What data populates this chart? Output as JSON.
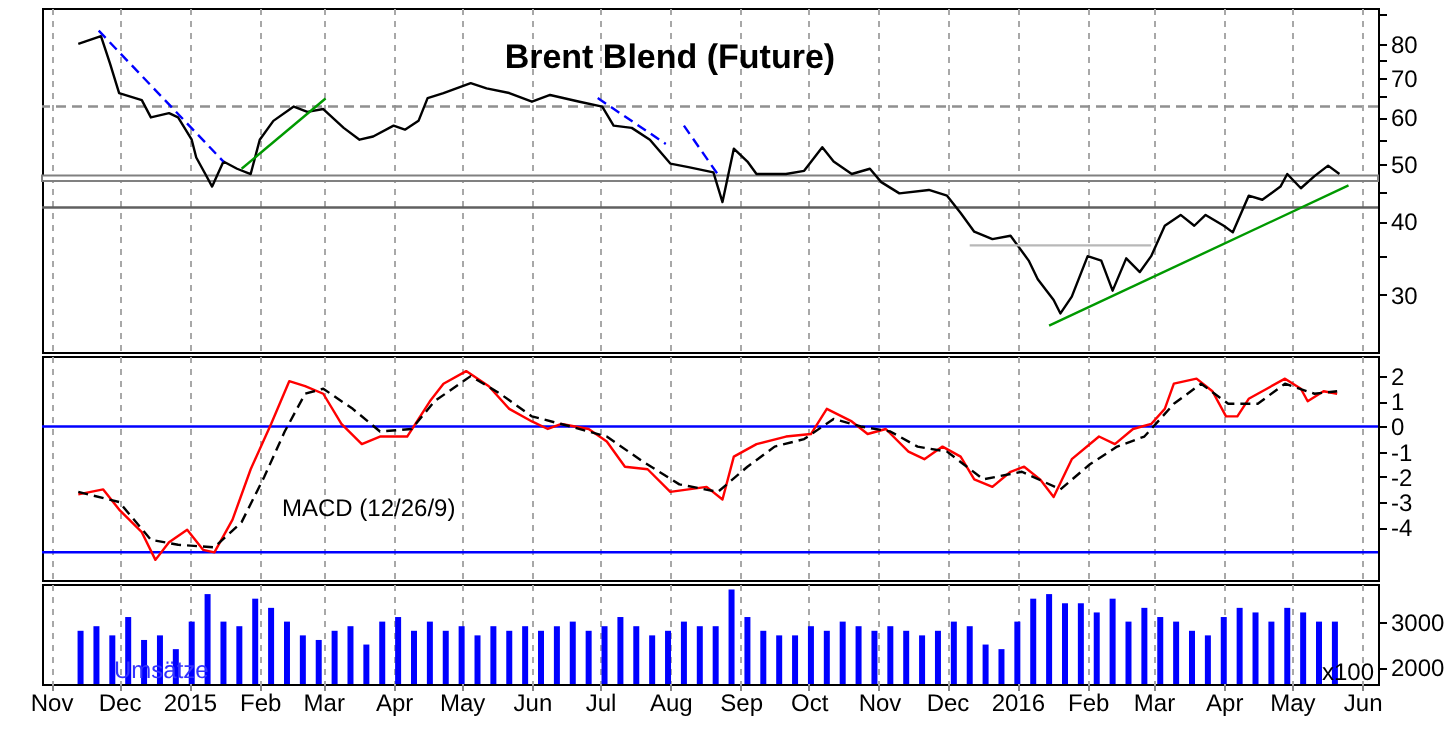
{
  "chart_data": [
    {
      "type": "line",
      "title": "Brent Blend (Future)",
      "log": "y",
      "grid": "x",
      "tick_labels": "y",
      "xlim": [
        "2014-10-28",
        "2016-06-08"
      ],
      "xticks": [
        {
          "value": "2014-11-01",
          "label": null
        },
        {
          "value": "2014-12-01",
          "label": null
        },
        {
          "value": "2015-01-01",
          "label": null
        },
        {
          "value": "2015-02-01",
          "label": null
        },
        {
          "value": "2015-03-01",
          "label": null
        },
        {
          "value": "2015-04-01",
          "label": null
        },
        {
          "value": "2015-05-01",
          "label": null
        },
        {
          "value": "2015-06-01",
          "label": null
        },
        {
          "value": "2015-07-01",
          "label": null
        },
        {
          "value": "2015-08-01",
          "label": null
        },
        {
          "value": "2015-09-01",
          "label": null
        },
        {
          "value": "2015-10-01",
          "label": null
        },
        {
          "value": "2015-11-01",
          "label": null
        },
        {
          "value": "2015-12-01",
          "label": null
        },
        {
          "value": "2016-01-01",
          "label": null
        },
        {
          "value": "2016-02-01",
          "label": null
        },
        {
          "value": "2016-03-01",
          "label": null
        },
        {
          "value": "2016-04-01",
          "label": null
        },
        {
          "value": "2016-05-01",
          "label": null
        },
        {
          "value": "2016-06-01",
          "label": null
        }
      ],
      "ylim": [
        24,
        92
      ],
      "yticks": [
        30,
        {
          "value": 35,
          "label": null
        },
        40,
        {
          "value": 45,
          "label": null
        },
        50,
        {
          "value": 55,
          "label": null
        },
        60,
        {
          "value": 65,
          "label": null
        },
        70,
        {
          "value": 75,
          "label": null
        },
        80,
        {
          "value": 90,
          "label": null
        }
      ],
      "bands": [
        {
          "axis": "y",
          "from": 46.8,
          "to": 47.8,
          "color": "#808080"
        }
      ],
      "ref_lines": [
        {
          "axis": "y",
          "value": 62.6,
          "color": "#909090",
          "line_style": "dashed"
        },
        {
          "axis": "y",
          "value": 42.2,
          "color": "#606060",
          "line_style": "solid"
        }
      ],
      "series": [
        {
          "color": "#000000",
          "line_style": "solid",
          "x": [
            "2014-11-13",
            "2014-11-23",
            "2014-11-27",
            "2014-12-01",
            "2014-12-11",
            "2014-12-15",
            "2014-12-23",
            "2014-12-27",
            "2015-01-02",
            "2015-01-04",
            "2015-01-08",
            "2015-01-11",
            "2015-01-16",
            "2015-01-22",
            "2015-01-28",
            "2015-02-01",
            "2015-02-07",
            "2015-02-16",
            "2015-02-22",
            "2015-03-01",
            "2015-03-10",
            "2015-03-17",
            "2015-03-23",
            "2015-04-01",
            "2015-04-06",
            "2015-04-12",
            "2015-04-16",
            "2015-04-23",
            "2015-05-05",
            "2015-05-12",
            "2015-05-22",
            "2015-06-01",
            "2015-06-09",
            "2015-06-22",
            "2015-07-02",
            "2015-07-07",
            "2015-07-15",
            "2015-07-23",
            "2015-08-01",
            "2015-08-09",
            "2015-08-20",
            "2015-08-24",
            "2015-08-29",
            "2015-09-04",
            "2015-09-08",
            "2015-09-21",
            "2015-09-29",
            "2015-10-07",
            "2015-10-12",
            "2015-10-20",
            "2015-10-28",
            "2015-11-02",
            "2015-11-10",
            "2015-11-23",
            "2015-12-01",
            "2015-12-07",
            "2015-12-13",
            "2015-12-21",
            "2015-12-29",
            "2016-01-06",
            "2016-01-10",
            "2016-01-17",
            "2016-01-20",
            "2016-01-25",
            "2016-02-01",
            "2016-02-07",
            "2016-02-12",
            "2016-02-18",
            "2016-02-24",
            "2016-02-29",
            "2016-03-06",
            "2016-03-13",
            "2016-03-19",
            "2016-03-24",
            "2016-04-01",
            "2016-04-05",
            "2016-04-12",
            "2016-04-18",
            "2016-04-26",
            "2016-04-29",
            "2016-05-05",
            "2016-05-11",
            "2016-05-17",
            "2016-05-22"
          ],
          "values": [
            80,
            82.4,
            74,
            66,
            64.2,
            60,
            61,
            60,
            55,
            51.3,
            48.1,
            45.8,
            50.5,
            49.1,
            48.1,
            55,
            59.2,
            62.6,
            61.3,
            62,
            57.6,
            55,
            55.7,
            58.1,
            57.2,
            59.2,
            64.7,
            66,
            68.6,
            67.2,
            66,
            63.8,
            65.5,
            63.8,
            62.6,
            58.1,
            57.6,
            55,
            50.1,
            49.4,
            48.4,
            43.1,
            53.1,
            50.5,
            48.1,
            48.1,
            48.7,
            53.4,
            50.5,
            48.1,
            49.1,
            46.6,
            44.6,
            45.2,
            44.2,
            41.3,
            38.4,
            37.3,
            37.8,
            34.3,
            31.9,
            29.4,
            27.9,
            29.8,
            34.9,
            34.3,
            30.5,
            34.6,
            32.8,
            34.9,
            39.3,
            41,
            39.3,
            41,
            39.3,
            38.3,
            44.2,
            43.5,
            45.8,
            48.1,
            45.5,
            47.7,
            49.7,
            48.1
          ]
        },
        {
          "color": "#0000ff",
          "line_style": "dashed",
          "x": [
            "2014-11-22",
            "2015-01-16"
          ],
          "values": [
            84.2,
            50.5
          ]
        },
        {
          "color": "#009900",
          "line_style": "solid",
          "x": [
            "2015-01-24",
            "2015-03-02"
          ],
          "values": [
            49.1,
            64.6
          ]
        },
        {
          "color": "#0000ff",
          "line_style": "dashed",
          "x": [
            "2015-06-30",
            "2015-07-30"
          ],
          "values": [
            64.7,
            54.1
          ]
        },
        {
          "color": "#0000ff",
          "line_style": "dashed",
          "x": [
            "2015-08-07",
            "2015-08-22"
          ],
          "values": [
            58.1,
            48
          ]
        },
        {
          "color": "#b8b8b8",
          "line_style": "solid",
          "x": [
            "2015-12-11",
            "2016-02-29"
          ],
          "values": [
            36.4,
            36.4
          ]
        },
        {
          "color": "#009900",
          "line_style": "solid",
          "x": [
            "2016-01-15",
            "2016-05-26"
          ],
          "values": [
            26.6,
            46
          ]
        }
      ]
    },
    {
      "type": "line",
      "grid": "x",
      "tick_labels": "y",
      "annotations": [
        "MACD (12/26/9)"
      ],
      "xlim": [
        "2014-10-28",
        "2016-06-08"
      ],
      "xticks": [
        {
          "value": "2014-11-01",
          "label": null
        },
        {
          "value": "2014-12-01",
          "label": null
        },
        {
          "value": "2015-01-01",
          "label": null
        },
        {
          "value": "2015-02-01",
          "label": null
        },
        {
          "value": "2015-03-01",
          "label": null
        },
        {
          "value": "2015-04-01",
          "label": null
        },
        {
          "value": "2015-05-01",
          "label": null
        },
        {
          "value": "2015-06-01",
          "label": null
        },
        {
          "value": "2015-07-01",
          "label": null
        },
        {
          "value": "2015-08-01",
          "label": null
        },
        {
          "value": "2015-09-01",
          "label": null
        },
        {
          "value": "2015-10-01",
          "label": null
        },
        {
          "value": "2015-11-01",
          "label": null
        },
        {
          "value": "2015-12-01",
          "label": null
        },
        {
          "value": "2016-01-01",
          "label": null
        },
        {
          "value": "2016-02-01",
          "label": null
        },
        {
          "value": "2016-03-01",
          "label": null
        },
        {
          "value": "2016-04-01",
          "label": null
        },
        {
          "value": "2016-05-01",
          "label": null
        },
        {
          "value": "2016-06-01",
          "label": null
        }
      ],
      "ylim": [
        -6.1,
        2.8
      ],
      "yticks": [
        2,
        1,
        0,
        -1,
        -2,
        -3,
        -4
      ],
      "ref_lines": [
        {
          "axis": "y",
          "value": 0,
          "color": "#0000ff",
          "line_style": "solid"
        },
        {
          "axis": "y",
          "value": -5,
          "color": "#0000ff",
          "line_style": "solid"
        }
      ],
      "series": [
        {
          "color": "#ff0000",
          "line_style": "solid",
          "x": [
            "2014-11-13",
            "2014-11-24",
            "2014-12-01",
            "2014-12-11",
            "2014-12-17",
            "2014-12-23",
            "2014-12-31",
            "2015-01-07",
            "2015-01-12",
            "2015-01-20",
            "2015-01-28",
            "2015-02-06",
            "2015-02-14",
            "2015-02-21",
            "2015-03-01",
            "2015-03-09",
            "2015-03-18",
            "2015-03-26",
            "2015-04-07",
            "2015-04-17",
            "2015-04-23",
            "2015-05-03",
            "2015-05-13",
            "2015-05-22",
            "2015-06-01",
            "2015-06-08",
            "2015-06-14",
            "2015-06-26",
            "2015-07-04",
            "2015-07-12",
            "2015-07-22",
            "2015-08-01",
            "2015-08-09",
            "2015-08-17",
            "2015-08-24",
            "2015-08-29",
            "2015-09-08",
            "2015-09-21",
            "2015-10-02",
            "2015-10-09",
            "2015-10-20",
            "2015-10-27",
            "2015-11-04",
            "2015-11-14",
            "2015-11-21",
            "2015-11-29",
            "2015-12-07",
            "2015-12-13",
            "2015-12-21",
            "2015-12-29",
            "2016-01-04",
            "2016-01-11",
            "2016-01-17",
            "2016-01-25",
            "2016-02-06",
            "2016-02-13",
            "2016-02-21",
            "2016-02-29",
            "2016-03-06",
            "2016-03-10",
            "2016-03-20",
            "2016-03-27",
            "2016-04-02",
            "2016-04-07",
            "2016-04-12",
            "2016-04-20",
            "2016-04-28",
            "2016-05-05",
            "2016-05-08",
            "2016-05-15",
            "2016-05-21"
          ],
          "values": [
            -2.7,
            -2.5,
            -3.3,
            -4.2,
            -5.3,
            -4.6,
            -4.1,
            -4.9,
            -5,
            -3.7,
            -1.7,
            0.1,
            1.8,
            1.6,
            1.3,
            0.1,
            -0.7,
            -0.4,
            -0.4,
            1,
            1.7,
            2.2,
            1.6,
            0.7,
            0.2,
            -0.1,
            0.1,
            -0.1,
            -0.6,
            -1.6,
            -1.7,
            -2.6,
            -2.5,
            -2.4,
            -2.9,
            -1.2,
            -0.7,
            -0.4,
            -0.3,
            0.7,
            0.2,
            -0.3,
            -0.1,
            -1,
            -1.3,
            -0.8,
            -1.2,
            -2.1,
            -2.4,
            -1.8,
            -1.6,
            -2.1,
            -2.8,
            -1.3,
            -0.4,
            -0.7,
            -0.1,
            0.1,
            0.7,
            1.7,
            1.9,
            1.4,
            0.4,
            0.4,
            1.1,
            1.5,
            1.9,
            1.5,
            1,
            1.4,
            1.3
          ]
        },
        {
          "color": "#000000",
          "line_style": "dashed",
          "x": [
            "2014-11-13",
            "2014-12-01",
            "2014-12-15",
            "2014-12-27",
            "2015-01-12",
            "2015-01-24",
            "2015-02-03",
            "2015-02-12",
            "2015-02-21",
            "2015-03-01",
            "2015-03-14",
            "2015-03-26",
            "2015-04-09",
            "2015-04-19",
            "2015-05-05",
            "2015-05-18",
            "2015-06-01",
            "2015-06-18",
            "2015-07-04",
            "2015-07-20",
            "2015-08-05",
            "2015-08-22",
            "2015-09-04",
            "2015-09-16",
            "2015-09-29",
            "2015-10-12",
            "2015-10-24",
            "2015-11-06",
            "2015-11-18",
            "2015-12-01",
            "2015-12-17",
            "2016-01-03",
            "2016-01-20",
            "2016-02-02",
            "2016-02-14",
            "2016-02-26",
            "2016-03-10",
            "2016-03-22",
            "2016-04-03",
            "2016-04-16",
            "2016-04-28",
            "2016-05-11",
            "2016-05-21"
          ],
          "values": [
            -2.6,
            -3,
            -4.5,
            -4.7,
            -4.8,
            -3.8,
            -2,
            -0.2,
            1.3,
            1.5,
            0.7,
            -0.2,
            -0.1,
            1,
            2,
            1.3,
            0.4,
            0,
            -0.4,
            -1.4,
            -2.3,
            -2.6,
            -1.6,
            -0.8,
            -0.5,
            0.3,
            0,
            -0.2,
            -0.8,
            -1,
            -2.1,
            -1.8,
            -2.5,
            -1.5,
            -0.8,
            -0.4,
            0.9,
            1.7,
            0.9,
            0.9,
            1.7,
            1.3,
            1.4
          ]
        }
      ]
    },
    {
      "type": "bar",
      "grid": "x",
      "color": "#0000ff",
      "annotations": [
        "Umsätze",
        "x100"
      ],
      "xlim": [
        "2014-10-28",
        "2016-06-08"
      ],
      "xticks": [
        {
          "value": "2014-11-01",
          "label": "Nov"
        },
        {
          "value": "2014-12-01",
          "label": "Dec"
        },
        {
          "value": "2015-01-01",
          "label": "2015"
        },
        {
          "value": "2015-02-01",
          "label": "Feb"
        },
        {
          "value": "2015-03-01",
          "label": "Mar"
        },
        {
          "value": "2015-04-01",
          "label": "Apr"
        },
        {
          "value": "2015-05-01",
          "label": "May"
        },
        {
          "value": "2015-06-01",
          "label": "Jun"
        },
        {
          "value": "2015-07-01",
          "label": "Jul"
        },
        {
          "value": "2015-08-01",
          "label": "Aug"
        },
        {
          "value": "2015-09-01",
          "label": "Sep"
        },
        {
          "value": "2015-10-01",
          "label": "Oct"
        },
        {
          "value": "2015-11-01",
          "label": "Nov"
        },
        {
          "value": "2015-12-01",
          "label": "Dec"
        },
        {
          "value": "2016-01-01",
          "label": "2016"
        },
        {
          "value": "2016-02-01",
          "label": "Feb"
        },
        {
          "value": "2016-03-01",
          "label": "Mar"
        },
        {
          "value": "2016-04-01",
          "label": "Apr"
        },
        {
          "value": "2016-05-01",
          "label": "May"
        },
        {
          "value": "2016-06-01",
          "label": "Jun"
        }
      ],
      "ylim": [
        1640,
        3820
      ],
      "yticks": [
        3000,
        2000
      ],
      "x": [
        "2014-11-14",
        "2014-11-21",
        "2014-11-28",
        "2014-12-05",
        "2014-12-12",
        "2014-12-19",
        "2014-12-26",
        "2015-01-02",
        "2015-01-09",
        "2015-01-16",
        "2015-01-23",
        "2015-01-30",
        "2015-02-06",
        "2015-02-13",
        "2015-02-20",
        "2015-02-27",
        "2015-03-06",
        "2015-03-13",
        "2015-03-20",
        "2015-03-27",
        "2015-04-03",
        "2015-04-10",
        "2015-04-17",
        "2015-04-24",
        "2015-05-01",
        "2015-05-08",
        "2015-05-15",
        "2015-05-22",
        "2015-05-29",
        "2015-06-05",
        "2015-06-12",
        "2015-06-19",
        "2015-06-26",
        "2015-07-03",
        "2015-07-10",
        "2015-07-17",
        "2015-07-24",
        "2015-07-31",
        "2015-08-07",
        "2015-08-14",
        "2015-08-21",
        "2015-08-28",
        "2015-09-04",
        "2015-09-11",
        "2015-09-18",
        "2015-09-25",
        "2015-10-02",
        "2015-10-09",
        "2015-10-16",
        "2015-10-23",
        "2015-10-30",
        "2015-11-06",
        "2015-11-13",
        "2015-11-20",
        "2015-11-27",
        "2015-12-04",
        "2015-12-11",
        "2015-12-18",
        "2015-12-25",
        "2016-01-01",
        "2016-01-08",
        "2016-01-15",
        "2016-01-22",
        "2016-01-29",
        "2016-02-05",
        "2016-02-12",
        "2016-02-19",
        "2016-02-26",
        "2016-03-04",
        "2016-03-11",
        "2016-03-18",
        "2016-03-25",
        "2016-04-01",
        "2016-04-08",
        "2016-04-15",
        "2016-04-22",
        "2016-04-29",
        "2016-05-06",
        "2016-05-13",
        "2016-05-20"
      ],
      "values": [
        2800,
        2900,
        2700,
        3100,
        2600,
        2700,
        2400,
        3000,
        3600,
        3000,
        2900,
        3500,
        3300,
        3000,
        2700,
        2600,
        2800,
        2900,
        2500,
        3000,
        3100,
        2800,
        3000,
        2800,
        2900,
        2700,
        2900,
        2800,
        2900,
        2800,
        2900,
        3000,
        2800,
        2900,
        3100,
        2900,
        2700,
        2800,
        3000,
        2900,
        2900,
        3700,
        3100,
        2800,
        2700,
        2700,
        2900,
        2800,
        3000,
        2900,
        2800,
        2900,
        2800,
        2700,
        2800,
        3000,
        2900,
        2500,
        2400,
        3000,
        3500,
        3600,
        3400,
        3400,
        3200,
        3500,
        3000,
        3300,
        3100,
        3000,
        2800,
        2700,
        3100,
        3300,
        3200,
        3000,
        3300,
        3200,
        3000,
        3000
      ]
    }
  ]
}
